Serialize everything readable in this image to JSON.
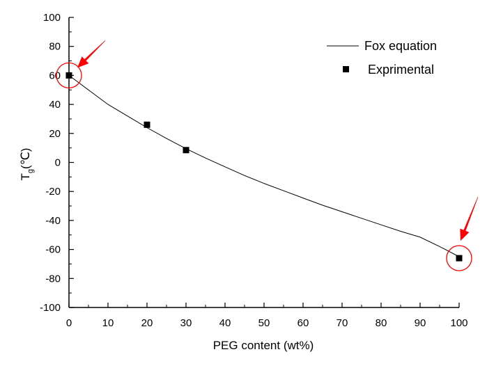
{
  "chart_data": {
    "type": "scatter",
    "title": "",
    "xlabel": "PEG content (wt%)",
    "ylabel": {
      "main": "T",
      "subscript": "g",
      "unit": "(℃)"
    },
    "xlim": [
      0,
      100
    ],
    "ylim": [
      -100,
      100
    ],
    "x_ticks": [
      0,
      10,
      20,
      30,
      40,
      50,
      60,
      70,
      80,
      90,
      100
    ],
    "y_ticks": [
      -100,
      -80,
      -60,
      -40,
      -20,
      0,
      20,
      40,
      60,
      80,
      100
    ],
    "grid": false,
    "legend_position": "top-right",
    "series": [
      {
        "name": "Fox equation",
        "kind": "line",
        "color": "#000000",
        "x": [
          0,
          5,
          10,
          15,
          20,
          25,
          30,
          35,
          40,
          45,
          50,
          55,
          60,
          65,
          70,
          75,
          80,
          85,
          90,
          95,
          100
        ],
        "y": [
          60,
          50,
          40,
          32,
          24,
          16.5,
          9.5,
          3,
          -3,
          -9,
          -14.5,
          -19.5,
          -24.5,
          -29.5,
          -34,
          -38.5,
          -43,
          -47.5,
          -51.5,
          -58,
          -65
        ]
      },
      {
        "name": "Exprimental",
        "kind": "scatter",
        "color": "#000000",
        "marker": "square",
        "x": [
          0,
          20,
          30,
          100
        ],
        "y": [
          60,
          26,
          8.5,
          -66
        ]
      }
    ],
    "annotations": [
      {
        "type": "circle-with-arrow",
        "x": 0,
        "y": 60,
        "color": "#ff0000"
      },
      {
        "type": "circle-with-arrow",
        "x": 100,
        "y": -66,
        "color": "#ff0000"
      }
    ]
  }
}
